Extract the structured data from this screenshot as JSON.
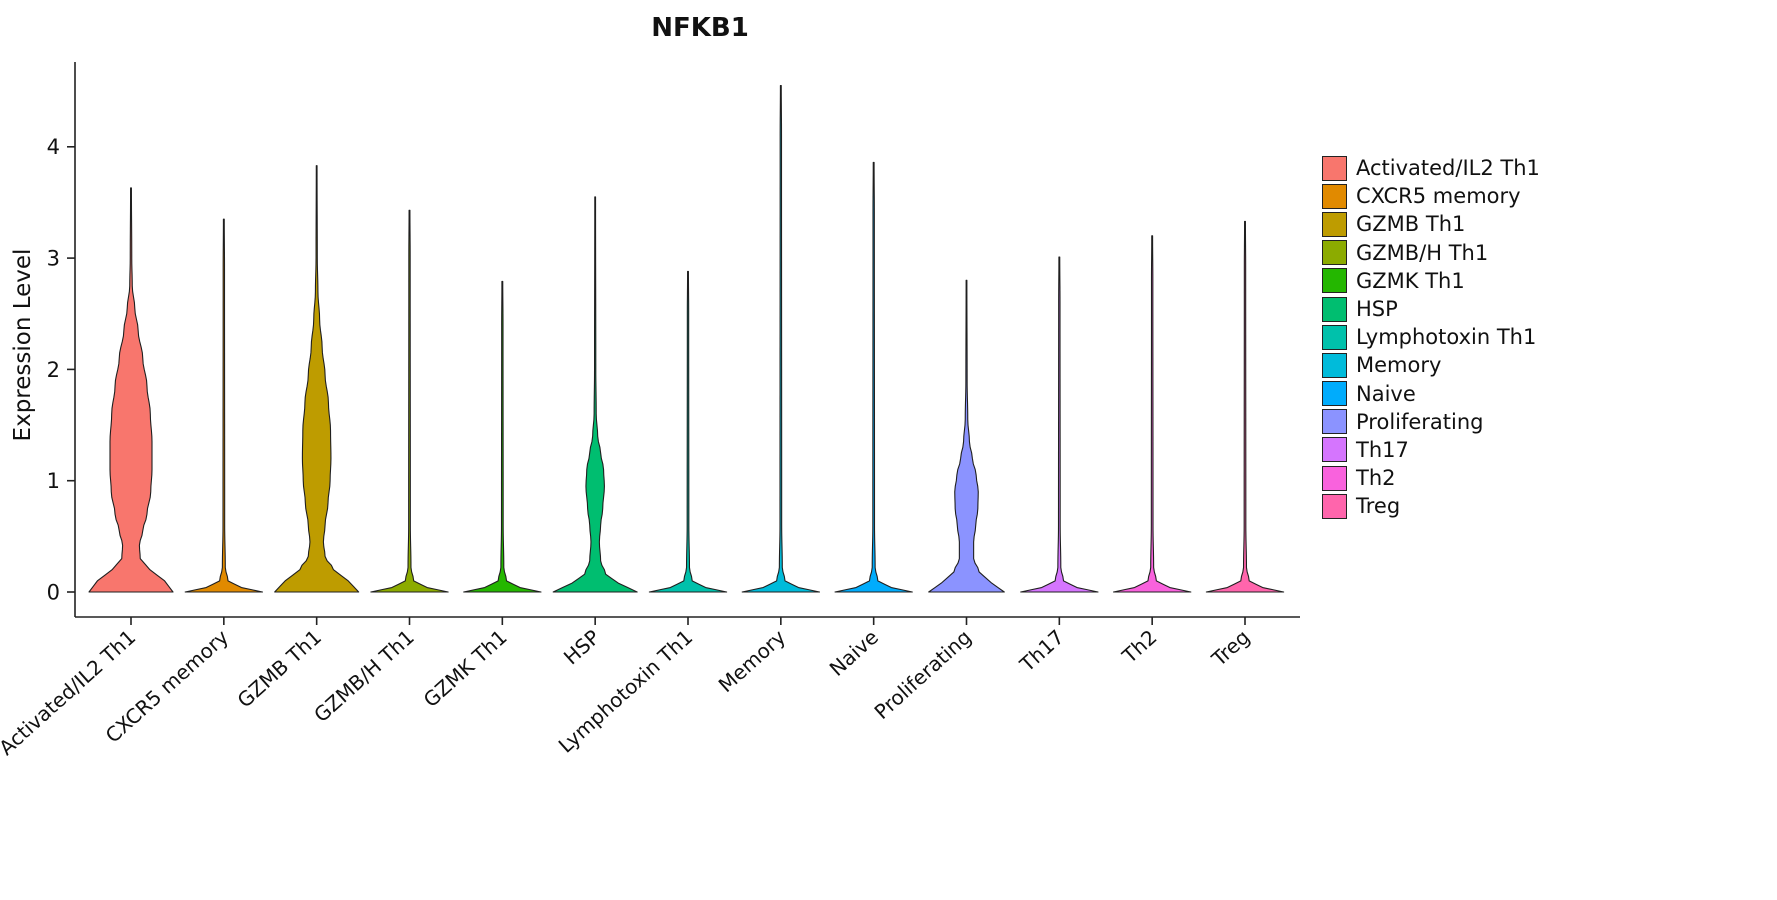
{
  "chart_data": {
    "type": "violin",
    "title": "NFKB1",
    "ylabel": "Expression Level",
    "xlabel": "",
    "ylim": [
      0,
      4.7
    ],
    "yticks": [
      0,
      1,
      2,
      3,
      4
    ],
    "grid": false,
    "legend_position": "right",
    "categories": [
      "Activated/IL2 Th1",
      "CXCR5 memory",
      "GZMB Th1",
      "GZMB/H Th1",
      "GZMK Th1",
      "HSP",
      "Lymphotoxin Th1",
      "Memory",
      "Naive",
      "Proliferating",
      "Th17",
      "Th2",
      "Treg"
    ],
    "series": [
      {
        "name": "Activated/IL2 Th1",
        "color": "#F8766D",
        "max_expression": 3.63,
        "profile": [
          [
            0,
            1.0
          ],
          [
            0.1,
            0.8
          ],
          [
            0.2,
            0.45
          ],
          [
            0.3,
            0.22
          ],
          [
            0.42,
            0.2
          ],
          [
            0.55,
            0.28
          ],
          [
            0.7,
            0.38
          ],
          [
            0.9,
            0.47
          ],
          [
            1.1,
            0.5
          ],
          [
            1.35,
            0.5
          ],
          [
            1.6,
            0.46
          ],
          [
            1.85,
            0.38
          ],
          [
            2.1,
            0.28
          ],
          [
            2.35,
            0.17
          ],
          [
            2.55,
            0.09
          ],
          [
            2.75,
            0.03
          ],
          [
            3.0,
            0.018
          ],
          [
            3.63,
            0.01
          ]
        ]
      },
      {
        "name": "CXCR5 memory",
        "color": "#E18A00",
        "max_expression": 3.35,
        "profile": [
          [
            0,
            0.92
          ],
          [
            0.04,
            0.42
          ],
          [
            0.1,
            0.1
          ],
          [
            0.22,
            0.035
          ],
          [
            0.6,
            0.02
          ],
          [
            2.9,
            0.016
          ],
          [
            3.35,
            0.01
          ]
        ]
      },
      {
        "name": "GZMB Th1",
        "color": "#BE9C00",
        "max_expression": 3.83,
        "profile": [
          [
            0,
            1.0
          ],
          [
            0.1,
            0.75
          ],
          [
            0.2,
            0.4
          ],
          [
            0.32,
            0.2
          ],
          [
            0.45,
            0.16
          ],
          [
            0.6,
            0.2
          ],
          [
            0.8,
            0.27
          ],
          [
            1.0,
            0.32
          ],
          [
            1.2,
            0.34
          ],
          [
            1.45,
            0.33
          ],
          [
            1.7,
            0.28
          ],
          [
            1.95,
            0.2
          ],
          [
            2.2,
            0.13
          ],
          [
            2.45,
            0.07
          ],
          [
            2.7,
            0.03
          ],
          [
            3.0,
            0.015
          ],
          [
            3.83,
            0.009
          ]
        ]
      },
      {
        "name": "GZMB/H Th1",
        "color": "#8CAB00",
        "max_expression": 3.43,
        "profile": [
          [
            0,
            0.92
          ],
          [
            0.04,
            0.42
          ],
          [
            0.1,
            0.1
          ],
          [
            0.22,
            0.035
          ],
          [
            0.6,
            0.02
          ],
          [
            3.0,
            0.016
          ],
          [
            3.43,
            0.01
          ]
        ]
      },
      {
        "name": "GZMK Th1",
        "color": "#24B700",
        "max_expression": 2.79,
        "profile": [
          [
            0,
            0.92
          ],
          [
            0.04,
            0.42
          ],
          [
            0.1,
            0.1
          ],
          [
            0.22,
            0.035
          ],
          [
            0.6,
            0.02
          ],
          [
            2.4,
            0.016
          ],
          [
            2.79,
            0.01
          ]
        ]
      },
      {
        "name": "HSP",
        "color": "#00BE70",
        "max_expression": 3.55,
        "profile": [
          [
            0,
            1.0
          ],
          [
            0.08,
            0.55
          ],
          [
            0.16,
            0.25
          ],
          [
            0.28,
            0.13
          ],
          [
            0.45,
            0.1
          ],
          [
            0.6,
            0.13
          ],
          [
            0.75,
            0.18
          ],
          [
            0.95,
            0.22
          ],
          [
            1.1,
            0.2
          ],
          [
            1.25,
            0.13
          ],
          [
            1.4,
            0.06
          ],
          [
            1.6,
            0.025
          ],
          [
            2.0,
            0.015
          ],
          [
            3.55,
            0.009
          ]
        ]
      },
      {
        "name": "Lymphotoxin Th1",
        "color": "#00C1AB",
        "max_expression": 2.88,
        "profile": [
          [
            0,
            0.92
          ],
          [
            0.04,
            0.42
          ],
          [
            0.1,
            0.1
          ],
          [
            0.22,
            0.035
          ],
          [
            0.6,
            0.02
          ],
          [
            2.5,
            0.016
          ],
          [
            2.88,
            0.01
          ]
        ]
      },
      {
        "name": "Memory",
        "color": "#00BBDA",
        "max_expression": 4.55,
        "profile": [
          [
            0,
            0.92
          ],
          [
            0.04,
            0.42
          ],
          [
            0.1,
            0.1
          ],
          [
            0.22,
            0.035
          ],
          [
            0.6,
            0.02
          ],
          [
            4.1,
            0.016
          ],
          [
            4.55,
            0.01
          ]
        ]
      },
      {
        "name": "Naive",
        "color": "#00ACFC",
        "max_expression": 3.86,
        "profile": [
          [
            0,
            0.92
          ],
          [
            0.04,
            0.42
          ],
          [
            0.1,
            0.1
          ],
          [
            0.22,
            0.035
          ],
          [
            0.6,
            0.02
          ],
          [
            3.4,
            0.016
          ],
          [
            3.86,
            0.01
          ]
        ]
      },
      {
        "name": "Proliferating",
        "color": "#8B93FF",
        "max_expression": 2.8,
        "profile": [
          [
            0,
            0.9
          ],
          [
            0.08,
            0.6
          ],
          [
            0.18,
            0.3
          ],
          [
            0.3,
            0.17
          ],
          [
            0.45,
            0.17
          ],
          [
            0.6,
            0.22
          ],
          [
            0.75,
            0.27
          ],
          [
            0.9,
            0.28
          ],
          [
            1.05,
            0.23
          ],
          [
            1.2,
            0.14
          ],
          [
            1.35,
            0.07
          ],
          [
            1.55,
            0.03
          ],
          [
            1.9,
            0.015
          ],
          [
            2.8,
            0.009
          ]
        ]
      },
      {
        "name": "Th17",
        "color": "#D575FE",
        "max_expression": 3.01,
        "profile": [
          [
            0,
            0.92
          ],
          [
            0.04,
            0.42
          ],
          [
            0.1,
            0.1
          ],
          [
            0.22,
            0.035
          ],
          [
            0.6,
            0.02
          ],
          [
            2.6,
            0.016
          ],
          [
            3.01,
            0.01
          ]
        ]
      },
      {
        "name": "Th2",
        "color": "#F962DD",
        "max_expression": 3.2,
        "profile": [
          [
            0,
            0.92
          ],
          [
            0.04,
            0.42
          ],
          [
            0.1,
            0.1
          ],
          [
            0.22,
            0.035
          ],
          [
            0.6,
            0.02
          ],
          [
            2.8,
            0.016
          ],
          [
            3.2,
            0.01
          ]
        ]
      },
      {
        "name": "Treg",
        "color": "#FF65AC",
        "max_expression": 3.33,
        "profile": [
          [
            0,
            0.92
          ],
          [
            0.04,
            0.42
          ],
          [
            0.1,
            0.1
          ],
          [
            0.22,
            0.035
          ],
          [
            0.6,
            0.02
          ],
          [
            2.9,
            0.016
          ],
          [
            3.33,
            0.01
          ]
        ]
      }
    ]
  }
}
